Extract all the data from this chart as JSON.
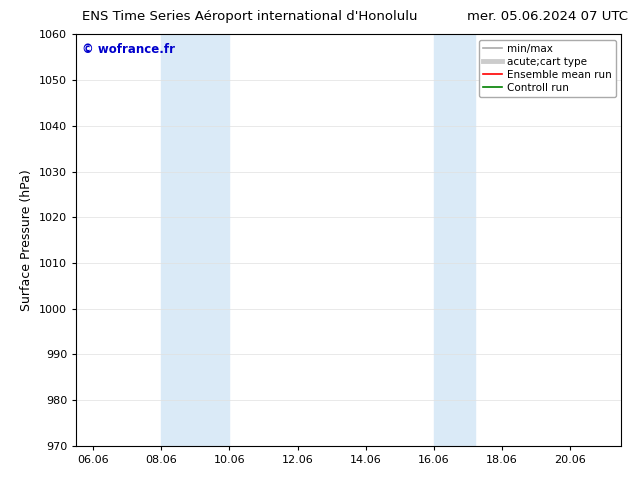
{
  "title_left": "ENS Time Series Aéroport international d'Honolulu",
  "title_right": "mer. 05.06.2024 07 UTC",
  "ylabel": "Surface Pressure (hPa)",
  "ylim": [
    970,
    1060
  ],
  "yticks": [
    970,
    980,
    990,
    1000,
    1010,
    1020,
    1030,
    1040,
    1050,
    1060
  ],
  "xlim_start": 5.5,
  "xlim_end": 21.5,
  "xtick_labels": [
    "06.06",
    "08.06",
    "10.06",
    "12.06",
    "14.06",
    "16.06",
    "18.06",
    "20.06"
  ],
  "xtick_positions": [
    6.0,
    8.0,
    10.0,
    12.0,
    14.0,
    16.0,
    18.0,
    20.0
  ],
  "shaded_bands": [
    {
      "x_start": 8.0,
      "x_end": 10.0,
      "color": "#daeaf7"
    },
    {
      "x_start": 16.0,
      "x_end": 17.2,
      "color": "#daeaf7"
    }
  ],
  "watermark_text": "© wofrance.fr",
  "watermark_color": "#0000cc",
  "legend_items": [
    {
      "label": "min/max",
      "color": "#aaaaaa",
      "lw": 1.2,
      "ls": "-"
    },
    {
      "label": "acute;cart type",
      "color": "#cccccc",
      "lw": 3.5,
      "ls": "-"
    },
    {
      "label": "Ensemble mean run",
      "color": "#ff0000",
      "lw": 1.2,
      "ls": "-"
    },
    {
      "label": "Controll run",
      "color": "#008000",
      "lw": 1.2,
      "ls": "-"
    }
  ],
  "bg_color": "#ffffff",
  "plot_bg_color": "#ffffff",
  "border_color": "#000000",
  "grid_color": "#e0e0e0",
  "title_fontsize": 9.5,
  "axis_label_fontsize": 9,
  "tick_fontsize": 8,
  "legend_fontsize": 7.5
}
